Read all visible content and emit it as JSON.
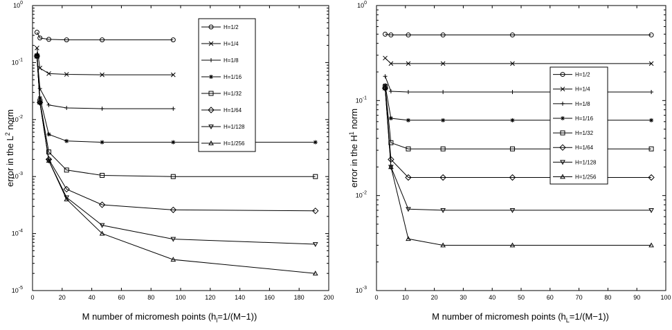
{
  "chart_data": [
    {
      "type": "line",
      "yscale": "log",
      "xlabel_main": "M  number  of  micromesh  points  (h",
      "xlabel_sub": "l",
      "xlabel_tail": "=1/(M−1))",
      "ylabel_main": "error  in  the  L",
      "ylabel_sup": "2",
      "ylabel_tail": "  norm",
      "xlim": [
        0,
        200
      ],
      "ylim_exp": [
        -5,
        0
      ],
      "xticks": [
        0,
        20,
        40,
        60,
        80,
        100,
        120,
        140,
        160,
        180,
        200
      ],
      "yticks": [
        {
          "base": "10",
          "exp": "-5"
        },
        {
          "base": "10",
          "exp": "-4"
        },
        {
          "base": "10",
          "exp": "-3"
        },
        {
          "base": "10",
          "exp": "-2"
        },
        {
          "base": "10",
          "exp": "-1"
        },
        {
          "base": "10",
          "exp": "0"
        }
      ],
      "legend_position": "top-right",
      "series": [
        {
          "name": "H=1/2",
          "marker": "circle",
          "x": [
            3,
            5,
            11,
            23,
            47,
            95
          ],
          "y": [
            0.34,
            0.27,
            0.255,
            0.25,
            0.25,
            0.25
          ]
        },
        {
          "name": "H=1/4",
          "marker": "x",
          "x": [
            3,
            5,
            11,
            23,
            47,
            95
          ],
          "y": [
            0.18,
            0.08,
            0.064,
            0.062,
            0.061,
            0.061
          ]
        },
        {
          "name": "H=1/8",
          "marker": "plus",
          "x": [
            3,
            5,
            11,
            23,
            47,
            95
          ],
          "y": [
            0.14,
            0.035,
            0.018,
            0.016,
            0.0155,
            0.0155
          ]
        },
        {
          "name": "H=1/16",
          "marker": "star",
          "x": [
            3,
            5,
            11,
            23,
            47,
            95,
            191
          ],
          "y": [
            0.135,
            0.024,
            0.0055,
            0.0042,
            0.004,
            0.004,
            0.004
          ]
        },
        {
          "name": "H=1/32",
          "marker": "square",
          "x": [
            3,
            5,
            11,
            23,
            47,
            95,
            191
          ],
          "y": [
            0.13,
            0.021,
            0.0027,
            0.0013,
            0.00105,
            0.001,
            0.001
          ]
        },
        {
          "name": "H=1/64",
          "marker": "diamond",
          "x": [
            3,
            5,
            11,
            23,
            47,
            95,
            191
          ],
          "y": [
            0.13,
            0.02,
            0.002,
            0.0006,
            0.00032,
            0.00026,
            0.00025
          ]
        },
        {
          "name": "H=1/128",
          "marker": "tri-down",
          "x": [
            3,
            5,
            11,
            23,
            47,
            95,
            191
          ],
          "y": [
            0.13,
            0.02,
            0.0019,
            0.00043,
            0.00014,
            8e-05,
            6.5e-05
          ]
        },
        {
          "name": "H=1/256",
          "marker": "tri-up",
          "x": [
            3,
            5,
            11,
            23,
            47,
            95,
            191
          ],
          "y": [
            0.13,
            0.02,
            0.0019,
            0.0004,
            0.0001,
            3.5e-05,
            2e-05
          ]
        }
      ]
    },
    {
      "type": "line",
      "yscale": "log",
      "xlabel_main": "M  number  of  micromesh  points  (h",
      "xlabel_sub": "L",
      "xlabel_tail": "=1/(M−1))",
      "ylabel_main": "error  in  the  H",
      "ylabel_sup": "1",
      "ylabel_tail": "  norm",
      "xlim": [
        0,
        100
      ],
      "ylim_exp": [
        -3,
        0
      ],
      "xticks": [
        0,
        10,
        20,
        30,
        40,
        50,
        60,
        70,
        80,
        90,
        100
      ],
      "yticks": [
        {
          "base": "10",
          "exp": "-3"
        },
        {
          "base": "10",
          "exp": "-2"
        },
        {
          "base": "10",
          "exp": "-1"
        },
        {
          "base": "10",
          "exp": "0"
        }
      ],
      "legend_position": "center-right",
      "series": [
        {
          "name": "H=1/2",
          "marker": "circle",
          "x": [
            3,
            5,
            11,
            23,
            47,
            95
          ],
          "y": [
            0.5,
            0.49,
            0.49,
            0.49,
            0.49,
            0.49
          ]
        },
        {
          "name": "H=1/4",
          "marker": "x",
          "x": [
            3,
            5,
            11,
            23,
            47,
            95
          ],
          "y": [
            0.28,
            0.245,
            0.245,
            0.245,
            0.245,
            0.245
          ]
        },
        {
          "name": "H=1/8",
          "marker": "plus",
          "x": [
            3,
            5,
            11,
            23,
            47,
            95
          ],
          "y": [
            0.18,
            0.125,
            0.123,
            0.123,
            0.123,
            0.123
          ]
        },
        {
          "name": "H=1/16",
          "marker": "star",
          "x": [
            3,
            5,
            11,
            23,
            47,
            95
          ],
          "y": [
            0.145,
            0.065,
            0.062,
            0.062,
            0.062,
            0.062
          ]
        },
        {
          "name": "H=1/32",
          "marker": "square",
          "x": [
            3,
            5,
            11,
            23,
            47,
            95
          ],
          "y": [
            0.14,
            0.036,
            0.031,
            0.031,
            0.031,
            0.031
          ]
        },
        {
          "name": "H=1/64",
          "marker": "diamond",
          "x": [
            3,
            5,
            11,
            23,
            47,
            95
          ],
          "y": [
            0.135,
            0.024,
            0.0155,
            0.0155,
            0.0155,
            0.0155
          ]
        },
        {
          "name": "H=1/128",
          "marker": "tri-down",
          "x": [
            3,
            5,
            11,
            23,
            47,
            95
          ],
          "y": [
            0.135,
            0.02,
            0.0072,
            0.007,
            0.007,
            0.007
          ]
        },
        {
          "name": "H=1/256",
          "marker": "tri-up",
          "x": [
            3,
            5,
            11,
            23,
            47,
            95
          ],
          "y": [
            0.135,
            0.02,
            0.0035,
            0.003,
            0.003,
            0.003
          ]
        }
      ]
    }
  ]
}
